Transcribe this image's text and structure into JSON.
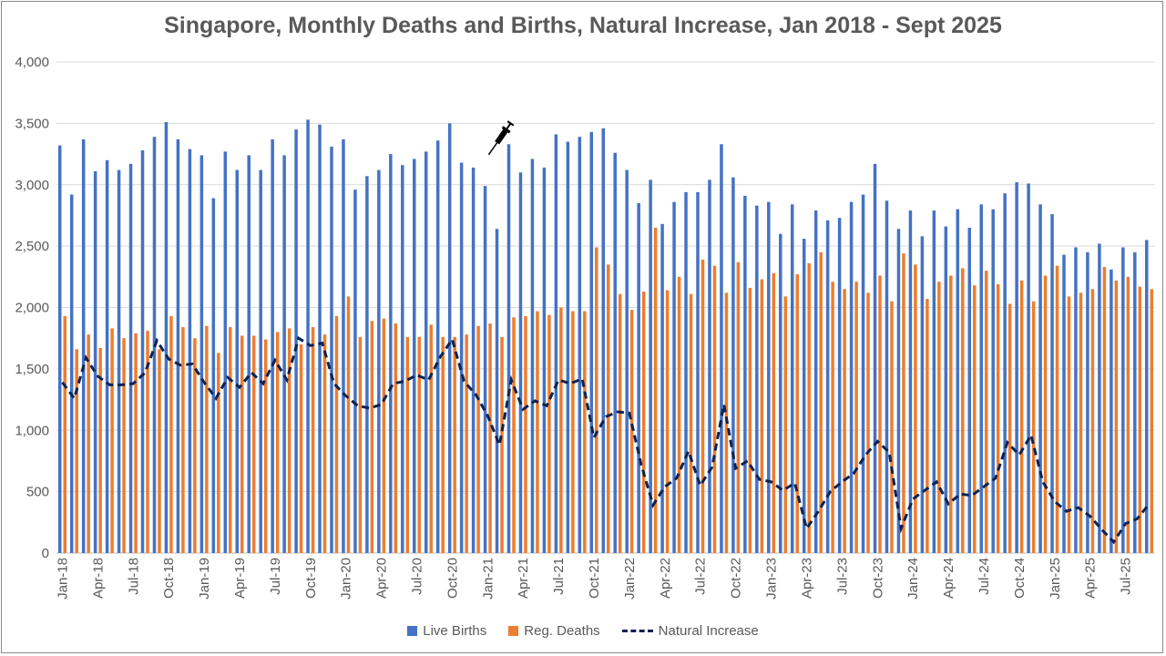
{
  "chart_data": {
    "type": "bar",
    "title": "Singapore, Monthly Deaths and Births, Natural Increase, Jan 2018 - Sept 2025",
    "xlabel": "",
    "ylabel": "",
    "ylim": [
      0,
      4000
    ],
    "y_ticks": [
      "0",
      "500",
      "1,000",
      "1,500",
      "2,000",
      "2,500",
      "3,000",
      "3,500",
      "4,000"
    ],
    "y_tick_values": [
      0,
      500,
      1000,
      1500,
      2000,
      2500,
      3000,
      3500,
      4000
    ],
    "x_tick_labels": [
      "Jan-18",
      "Apr-18",
      "Jul-18",
      "Oct-18",
      "Jan-19",
      "Apr-19",
      "Jul-19",
      "Oct-19",
      "Jan-20",
      "Apr-20",
      "Jul-20",
      "Oct-20",
      "Jan-21",
      "Apr-21",
      "Jul-21",
      "Oct-21",
      "Jan-22",
      "Apr-22",
      "Jul-22",
      "Oct-22",
      "Jan-23",
      "Apr-23",
      "Jul-23",
      "Oct-23",
      "Jan-24",
      "Apr-24",
      "Jul-24",
      "Oct-24",
      "Jan-25",
      "Apr-25",
      "Jul-25"
    ],
    "x_tick_every": 3,
    "grid": true,
    "legend_position": "bottom",
    "annotation_icon": "syringe-icon",
    "annotation_month_index": 36,
    "series": [
      {
        "name": "Live Births",
        "type": "bar",
        "color": "#4472c4",
        "values": [
          3320,
          2920,
          3370,
          3110,
          3200,
          3120,
          3170,
          3280,
          3390,
          3510,
          3370,
          3290,
          3240,
          2890,
          3270,
          3120,
          3240,
          3120,
          3370,
          3240,
          3450,
          3530,
          3490,
          3310,
          3370,
          2960,
          3070,
          3120,
          3250,
          3160,
          3210,
          3270,
          3360,
          3500,
          3180,
          3140,
          2990,
          2640,
          3330,
          3100,
          3210,
          3140,
          3410,
          3350,
          3390,
          3430,
          3460,
          3260,
          3120,
          2850,
          3040,
          2680,
          2860,
          2940,
          2940,
          3040,
          3330,
          3060,
          2910,
          2830,
          2860,
          2600,
          2840,
          2560,
          2790,
          2710,
          2730,
          2860,
          2920,
          3170,
          2870,
          2640,
          2790,
          2580,
          2790,
          2660,
          2800,
          2650,
          2840,
          2800,
          2930,
          3020,
          3010,
          2840,
          2760,
          2430,
          2490,
          2450,
          2520,
          2310,
          2490,
          2450,
          2550
        ]
      },
      {
        "name": "Reg. Deaths",
        "type": "bar",
        "color": "#ed7d31",
        "values": [
          1930,
          1660,
          1780,
          1670,
          1830,
          1750,
          1790,
          1810,
          1660,
          1930,
          1840,
          1750,
          1850,
          1630,
          1840,
          1770,
          1770,
          1740,
          1800,
          1830,
          1700,
          1840,
          1780,
          1930,
          2090,
          1760,
          1890,
          1910,
          1870,
          1760,
          1760,
          1860,
          1760,
          1760,
          1780,
          1850,
          1870,
          1760,
          1920,
          1930,
          1970,
          1940,
          2000,
          1970,
          1970,
          2490,
          2350,
          2110,
          1980,
          2130,
          2650,
          2140,
          2250,
          2110,
          2390,
          2340,
          2120,
          2370,
          2160,
          2230,
          2280,
          2090,
          2270,
          2360,
          2450,
          2210,
          2150,
          2210,
          2120,
          2260,
          2050,
          2440,
          2350,
          2070,
          2210,
          2260,
          2320,
          2180,
          2300,
          2190,
          2030,
          2220,
          2050,
          2260,
          2340,
          2090,
          2120,
          2150,
          2330,
          2220,
          2250,
          2170,
          2150
        ]
      },
      {
        "name": "Natural Increase",
        "type": "line",
        "color": "#0d2350",
        "style": "dashed",
        "values": [
          1390,
          1260,
          1590,
          1440,
          1370,
          1370,
          1380,
          1470,
          1730,
          1580,
          1530,
          1540,
          1390,
          1260,
          1430,
          1350,
          1470,
          1380,
          1570,
          1410,
          1750,
          1690,
          1710,
          1380,
          1280,
          1200,
          1180,
          1210,
          1380,
          1400,
          1450,
          1410,
          1600,
          1740,
          1400,
          1290,
          1120,
          880,
          1410,
          1170,
          1240,
          1200,
          1410,
          1380,
          1420,
          940,
          1110,
          1150,
          1140,
          720,
          390,
          540,
          610,
          830,
          550,
          700,
          1210,
          690,
          750,
          600,
          580,
          510,
          570,
          200,
          340,
          500,
          580,
          650,
          800,
          910,
          820,
          200,
          440,
          510,
          580,
          400,
          480,
          470,
          540,
          610,
          900,
          800,
          960,
          580,
          420,
          340,
          370,
          300,
          190,
          90,
          240,
          280,
          400
        ]
      }
    ]
  },
  "legend": [
    "Live Births",
    "Reg. Deaths",
    "Natural Increase"
  ]
}
